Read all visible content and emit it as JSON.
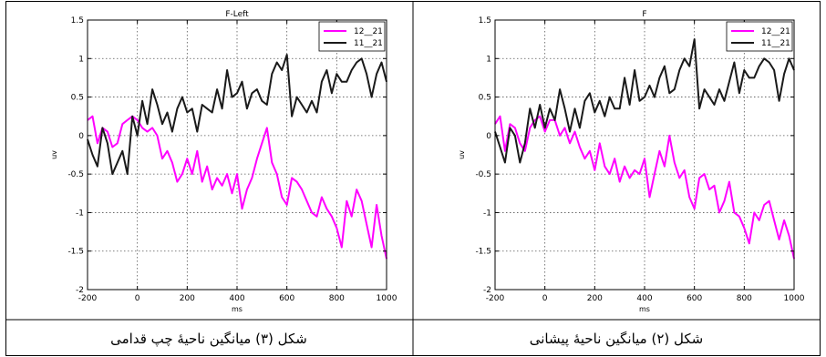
{
  "chart_data": [
    {
      "type": "line",
      "title": "F-Left",
      "xlabel": "ms",
      "ylabel": "uv",
      "xlim": [
        -200,
        1000
      ],
      "ylim": [
        -2,
        1.5
      ],
      "grid": true,
      "legend_position": "top-right",
      "x_ticks": [
        "-200",
        "0",
        "200",
        "400",
        "600",
        "800",
        "1000"
      ],
      "y_ticks": [
        "1.5",
        "1",
        "0.5",
        "0",
        "-0.5",
        "-1",
        "-1.5",
        "-2"
      ],
      "caption": "شکل (۳) میانگین ناحیۀ چپ قدامی",
      "series": [
        {
          "name": "12__21",
          "color": "#ff00ff",
          "x": [
            -200,
            -180,
            -160,
            -140,
            -120,
            -100,
            -80,
            -60,
            -40,
            -20,
            0,
            20,
            40,
            60,
            80,
            100,
            120,
            140,
            160,
            180,
            200,
            220,
            240,
            260,
            280,
            300,
            320,
            340,
            360,
            380,
            400,
            420,
            440,
            460,
            480,
            500,
            520,
            540,
            560,
            580,
            600,
            620,
            640,
            660,
            680,
            700,
            720,
            740,
            760,
            780,
            800,
            820,
            840,
            860,
            880,
            900,
            920,
            940,
            960,
            980,
            1000
          ],
          "y": [
            0.2,
            0.25,
            -0.1,
            0.1,
            0.05,
            -0.15,
            -0.1,
            0.15,
            0.2,
            0.25,
            0.2,
            0.1,
            0.05,
            0.1,
            0,
            -0.3,
            -0.2,
            -0.35,
            -0.6,
            -0.5,
            -0.3,
            -0.5,
            -0.2,
            -0.6,
            -0.4,
            -0.7,
            -0.55,
            -0.65,
            -0.5,
            -0.75,
            -0.5,
            -0.95,
            -0.7,
            -0.55,
            -0.3,
            -0.1,
            0.1,
            -0.35,
            -0.5,
            -0.8,
            -0.9,
            -0.55,
            -0.6,
            -0.7,
            -0.85,
            -1,
            -1.05,
            -0.8,
            -0.95,
            -1.05,
            -1.2,
            -1.45,
            -0.85,
            -1.05,
            -0.7,
            -0.85,
            -1.15,
            -1.45,
            -0.9,
            -1.3,
            -1.6
          ]
        },
        {
          "name": "11__21",
          "color": "#1a1a1a",
          "x": [
            -200,
            -180,
            -160,
            -140,
            -120,
            -100,
            -80,
            -60,
            -40,
            -20,
            0,
            20,
            40,
            60,
            80,
            100,
            120,
            140,
            160,
            180,
            200,
            220,
            240,
            260,
            280,
            300,
            320,
            340,
            360,
            380,
            400,
            420,
            440,
            460,
            480,
            500,
            520,
            540,
            560,
            580,
            600,
            620,
            640,
            660,
            680,
            700,
            720,
            740,
            760,
            780,
            800,
            820,
            840,
            860,
            880,
            900,
            920,
            940,
            960,
            980,
            1000
          ],
          "y": [
            -0.05,
            -0.25,
            -0.4,
            0.1,
            -0.1,
            -0.5,
            -0.35,
            -0.2,
            -0.5,
            0.25,
            0,
            0.45,
            0.15,
            0.6,
            0.4,
            0.15,
            0.3,
            0.05,
            0.35,
            0.5,
            0.3,
            0.35,
            0.05,
            0.4,
            0.35,
            0.3,
            0.6,
            0.35,
            0.85,
            0.5,
            0.55,
            0.7,
            0.35,
            0.55,
            0.6,
            0.45,
            0.4,
            0.8,
            0.95,
            0.85,
            1.05,
            0.25,
            0.5,
            0.4,
            0.3,
            0.45,
            0.3,
            0.7,
            0.85,
            0.55,
            0.8,
            0.7,
            0.7,
            0.85,
            0.95,
            1.0,
            0.8,
            0.5,
            0.8,
            0.95,
            0.7
          ]
        }
      ]
    },
    {
      "type": "line",
      "title": "F",
      "xlabel": "ms",
      "ylabel": "uv",
      "xlim": [
        -200,
        1000
      ],
      "ylim": [
        -2,
        1.5
      ],
      "grid": true,
      "legend_position": "top-right",
      "x_ticks": [
        "-200",
        "0",
        "200",
        "400",
        "600",
        "800",
        "1000"
      ],
      "y_ticks": [
        "1.5",
        "1",
        "0.5",
        "0",
        "-0.5",
        "-1",
        "-1.5",
        "-2"
      ],
      "caption": "شکل (۲) میانگین ناحیۀ پیشانی",
      "series": [
        {
          "name": "12__21",
          "color": "#ff00ff",
          "x": [
            -200,
            -180,
            -160,
            -140,
            -120,
            -100,
            -80,
            -60,
            -40,
            -20,
            0,
            20,
            40,
            60,
            80,
            100,
            120,
            140,
            160,
            180,
            200,
            220,
            240,
            260,
            280,
            300,
            320,
            340,
            360,
            380,
            400,
            420,
            440,
            460,
            480,
            500,
            520,
            540,
            560,
            580,
            600,
            620,
            640,
            660,
            680,
            700,
            720,
            740,
            760,
            780,
            800,
            820,
            840,
            860,
            880,
            900,
            920,
            940,
            960,
            980,
            1000
          ],
          "y": [
            0.15,
            0.25,
            -0.2,
            0.15,
            0.1,
            -0.1,
            -0.2,
            0.1,
            0.2,
            0.25,
            0.05,
            0.2,
            0.2,
            0,
            0.1,
            -0.1,
            0.05,
            -0.15,
            -0.3,
            -0.2,
            -0.45,
            -0.1,
            -0.4,
            -0.5,
            -0.3,
            -0.6,
            -0.4,
            -0.55,
            -0.45,
            -0.5,
            -0.3,
            -0.8,
            -0.5,
            -0.2,
            -0.4,
            0,
            -0.35,
            -0.55,
            -0.45,
            -0.8,
            -0.95,
            -0.55,
            -0.5,
            -0.7,
            -0.65,
            -1.0,
            -0.85,
            -0.6,
            -1.0,
            -1.05,
            -1.2,
            -1.4,
            -1.0,
            -1.1,
            -0.9,
            -0.85,
            -1.1,
            -1.35,
            -1.1,
            -1.3,
            -1.6
          ]
        },
        {
          "name": "11__21",
          "color": "#1a1a1a",
          "x": [
            -200,
            -180,
            -160,
            -140,
            -120,
            -100,
            -80,
            -60,
            -40,
            -20,
            0,
            20,
            40,
            60,
            80,
            100,
            120,
            140,
            160,
            180,
            200,
            220,
            240,
            260,
            280,
            300,
            320,
            340,
            360,
            380,
            400,
            420,
            440,
            460,
            480,
            500,
            520,
            540,
            560,
            580,
            600,
            620,
            640,
            660,
            680,
            700,
            720,
            740,
            760,
            780,
            800,
            820,
            840,
            860,
            880,
            900,
            920,
            940,
            960,
            980,
            1000
          ],
          "y": [
            0.05,
            -0.15,
            -0.35,
            0.1,
            0,
            -0.35,
            -0.1,
            0.35,
            0.1,
            0.4,
            0.1,
            0.35,
            0.2,
            0.6,
            0.35,
            0.05,
            0.35,
            0.1,
            0.45,
            0.55,
            0.3,
            0.45,
            0.25,
            0.5,
            0.35,
            0.35,
            0.75,
            0.4,
            0.85,
            0.45,
            0.5,
            0.65,
            0.5,
            0.75,
            0.9,
            0.55,
            0.6,
            0.85,
            1.0,
            0.9,
            1.25,
            0.35,
            0.6,
            0.5,
            0.4,
            0.6,
            0.45,
            0.7,
            0.95,
            0.55,
            0.85,
            0.75,
            0.75,
            0.9,
            1.0,
            0.95,
            0.85,
            0.45,
            0.8,
            1.0,
            0.85
          ]
        }
      ]
    }
  ]
}
